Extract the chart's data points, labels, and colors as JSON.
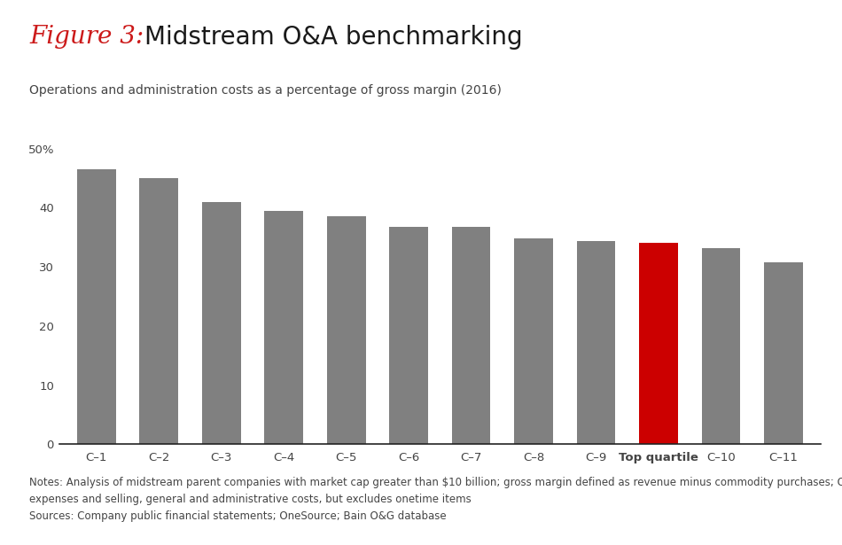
{
  "categories": [
    "C–1",
    "C–2",
    "C–3",
    "C–4",
    "C–5",
    "C–6",
    "C–7",
    "C–8",
    "C–9",
    "Top quartile",
    "C–10",
    "C–11"
  ],
  "values": [
    46.5,
    45.0,
    41.0,
    39.5,
    38.5,
    36.8,
    36.8,
    34.8,
    34.3,
    34.0,
    33.2,
    30.8
  ],
  "bar_colors": [
    "#808080",
    "#808080",
    "#808080",
    "#808080",
    "#808080",
    "#808080",
    "#808080",
    "#808080",
    "#808080",
    "#cc0000",
    "#808080",
    "#808080"
  ],
  "title_figure": "Figure 3:",
  "title_main": "Midstream O&A benchmarking",
  "subtitle": "Operations and administration costs as a percentage of gross margin (2016)",
  "yticks": [
    0,
    10,
    20,
    30,
    40,
    50
  ],
  "ytick_labels": [
    "0",
    "10",
    "20",
    "30",
    "40",
    "50%"
  ],
  "ylim": [
    0,
    53
  ],
  "figure_color": "#cc1a1a",
  "title_fontsize": 20,
  "subtitle_fontsize": 10,
  "notes_text": "Notes: Analysis of midstream parent companies with market cap greater than $10 billion; gross margin defined as revenue minus commodity purchases; O&A includes operating\nexpenses and selling, general and administrative costs, but excludes onetime items\nSources: Company public financial statements; OneSource; Bain O&G database",
  "bg_color": "#ffffff",
  "bar_width": 0.62,
  "tick_label_fontsize": 9.5,
  "notes_fontsize": 8.5
}
